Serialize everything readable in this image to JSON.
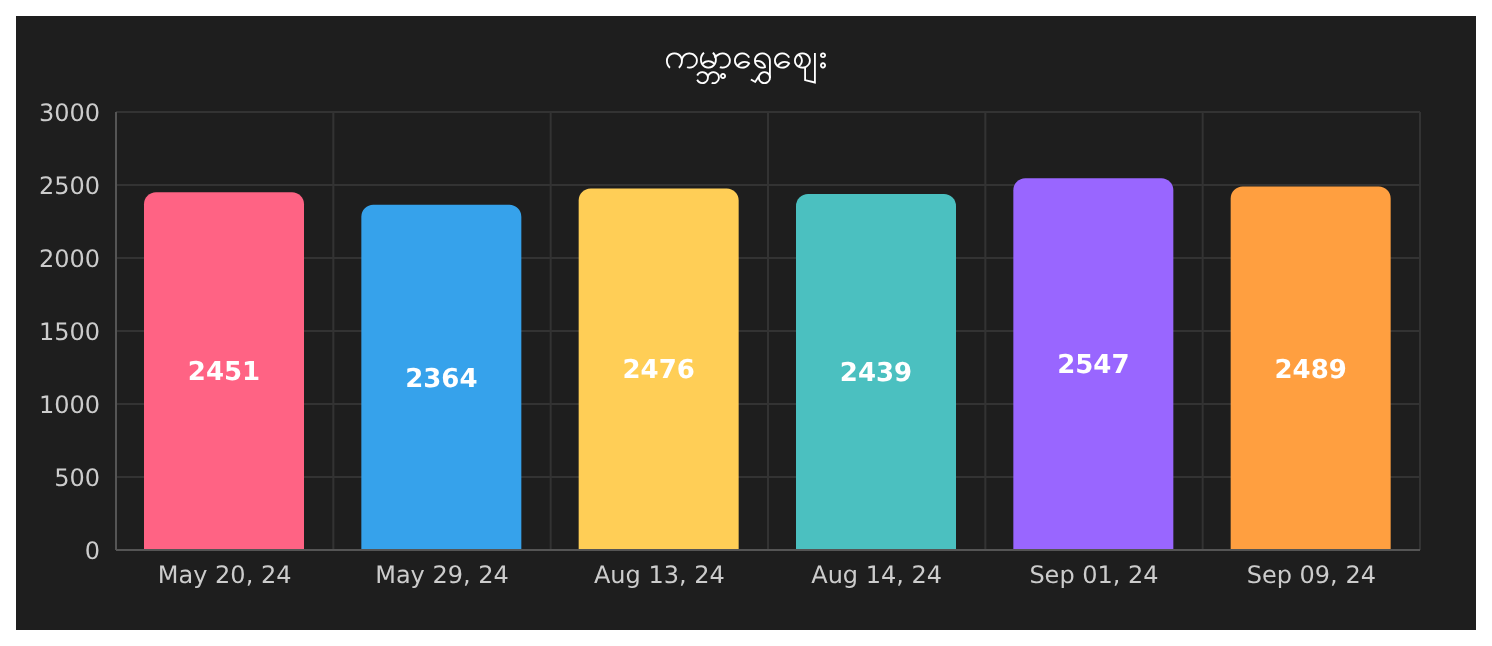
{
  "chart_data": {
    "type": "bar",
    "title": "ကမ္ဘာ့ရွှေဈေး",
    "categories": [
      "May 20, 24",
      "May 29, 24",
      "Aug 13, 24",
      "Aug 14, 24",
      "Sep 01, 24",
      "Sep 09, 24"
    ],
    "values": [
      2451,
      2364,
      2476,
      2439,
      2547,
      2489
    ],
    "colors": [
      "#ff6384",
      "#36a2eb",
      "#ffce56",
      "#4bc0c0",
      "#9966ff",
      "#ff9f40"
    ],
    "ylim": [
      0,
      3000
    ],
    "yticks": [
      0,
      500,
      1000,
      1500,
      2000,
      2500,
      3000
    ],
    "grid": true,
    "data_labels": true
  }
}
